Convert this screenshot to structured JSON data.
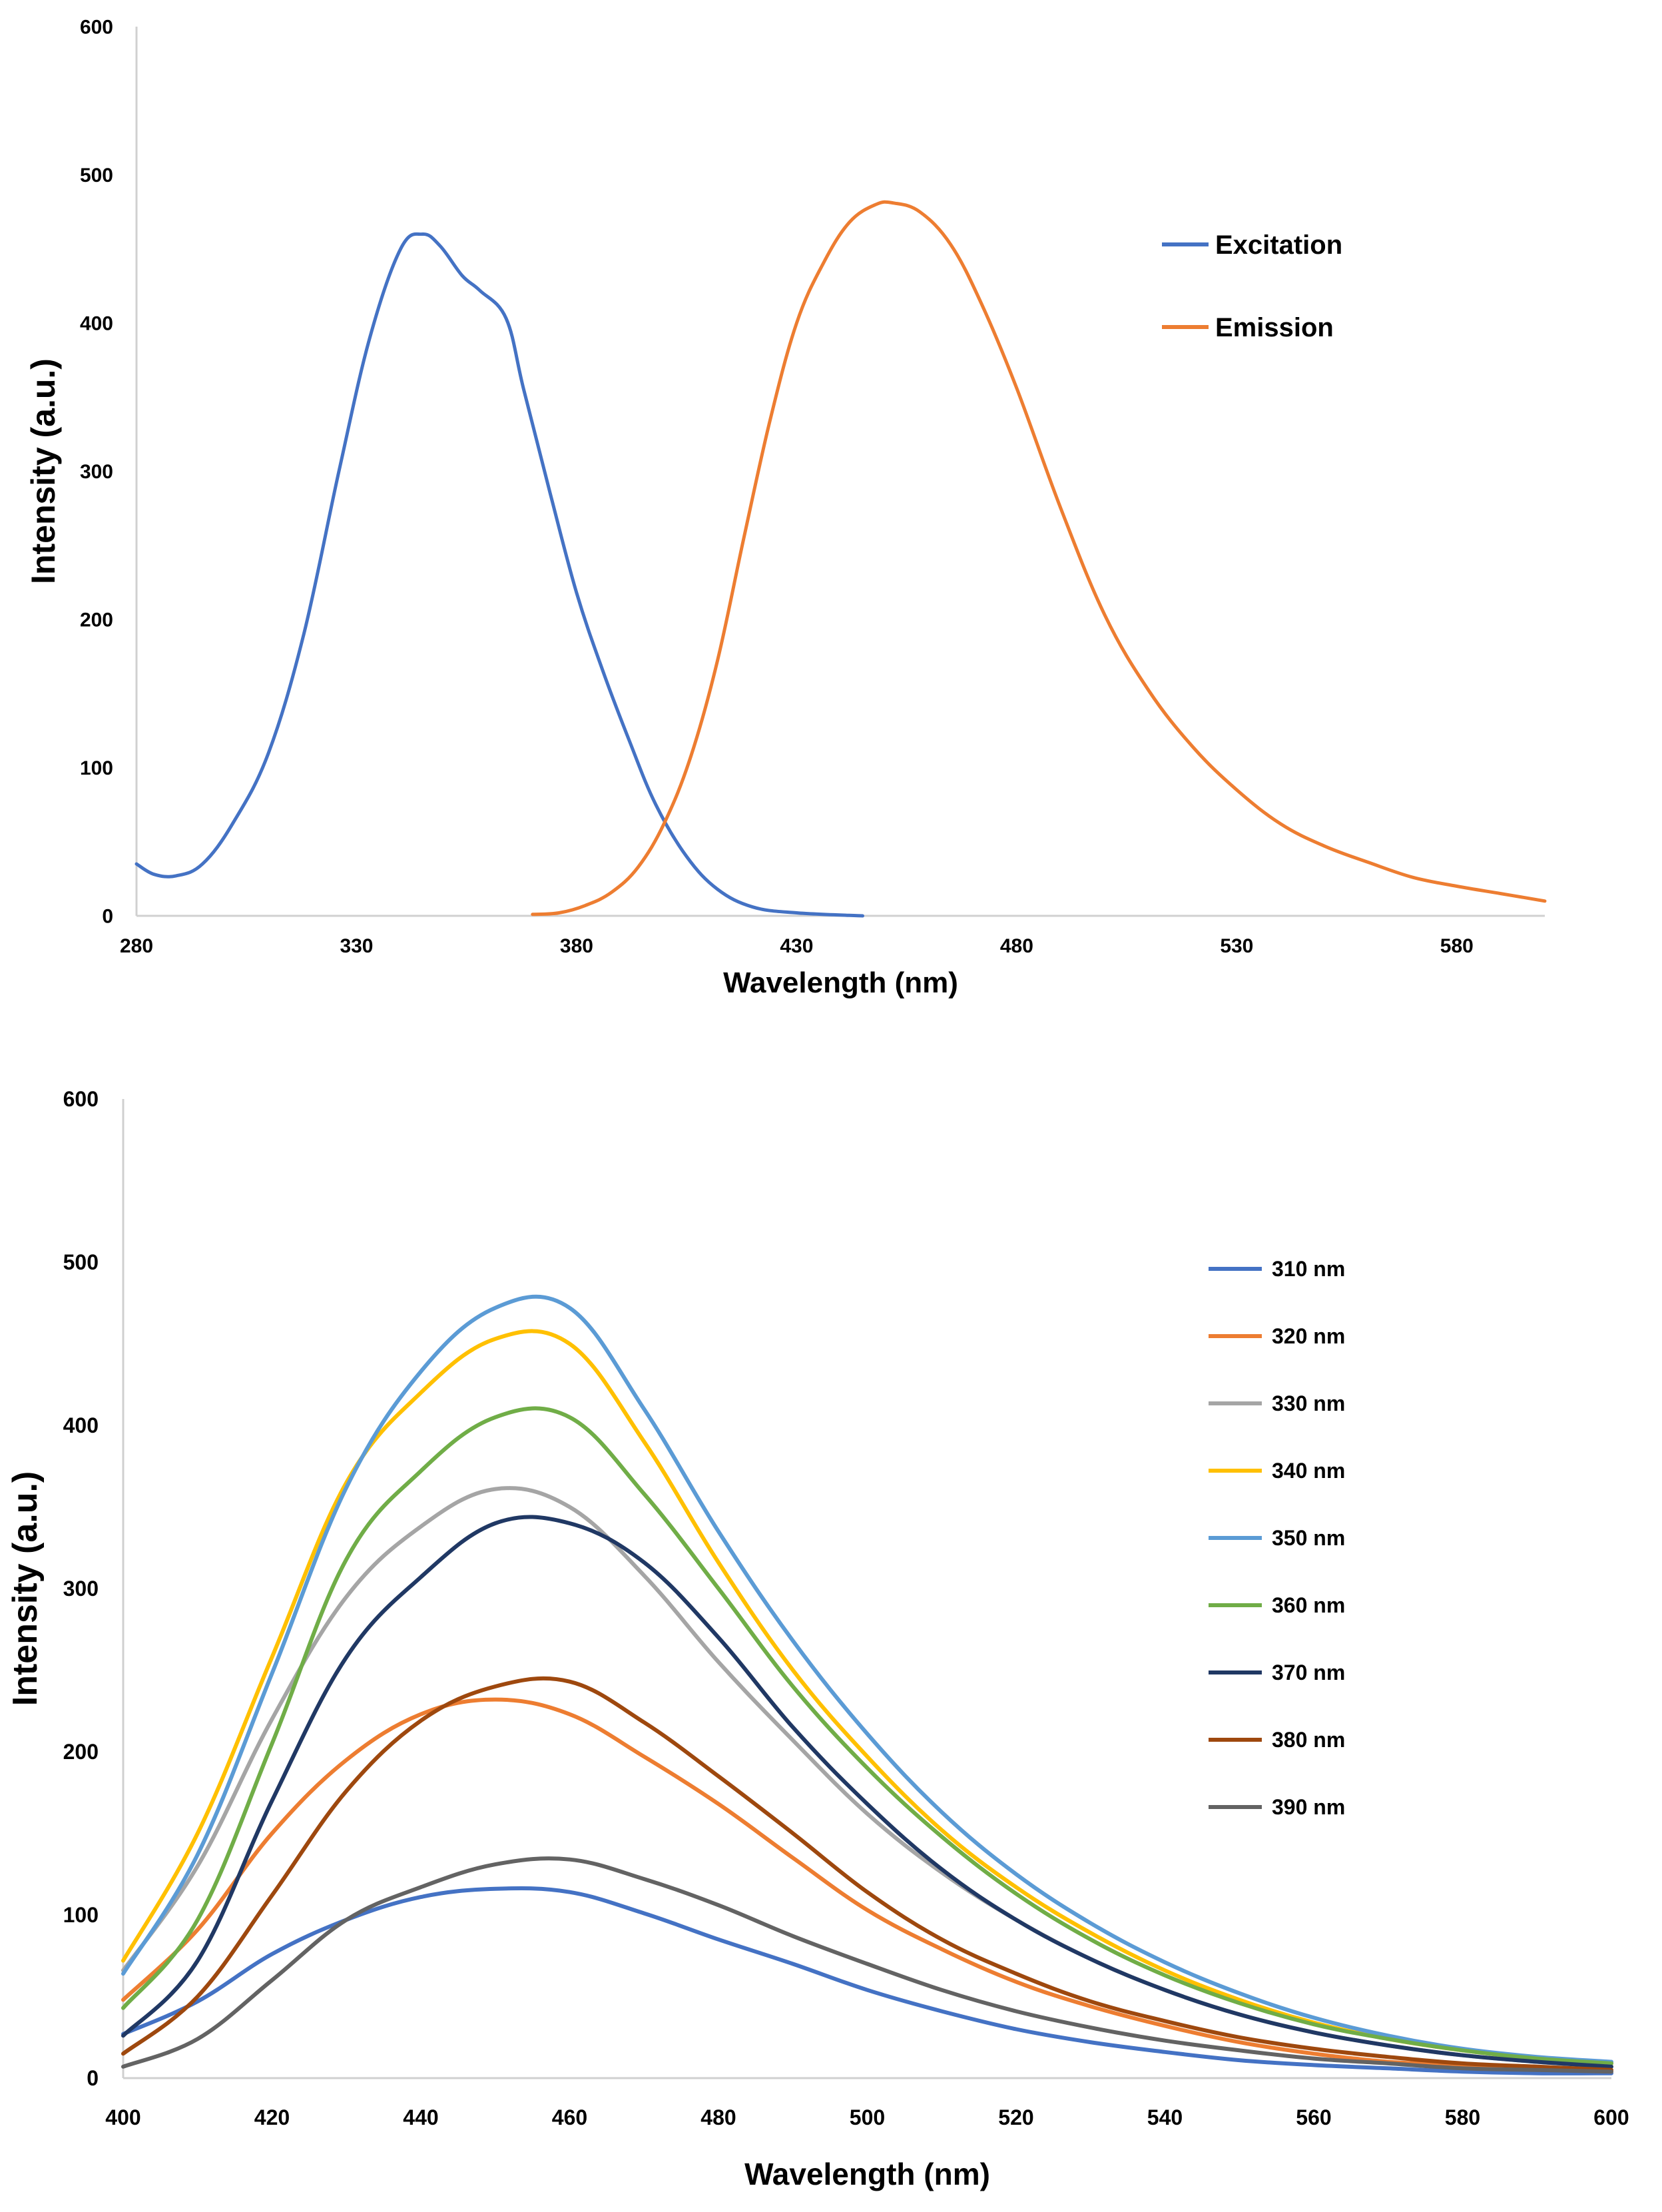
{
  "chart_data": [
    {
      "type": "line",
      "xlabel": "Wavelength (nm)",
      "ylabel": "Intensity (a.u.)",
      "xlim": [
        280,
        600
      ],
      "ylim": [
        0,
        600
      ],
      "xticks": [
        "280",
        "330",
        "380",
        "430",
        "480",
        "530",
        "580"
      ],
      "yticks": [
        "0",
        "100",
        "200",
        "300",
        "400",
        "500",
        "600"
      ],
      "grid": false,
      "legend_position": "top-right",
      "series": [
        {
          "name": "Excitation",
          "color": "#4472C4",
          "x": [
            280,
            284,
            289,
            295,
            302,
            310,
            318,
            326,
            333,
            340,
            345,
            349,
            354,
            358,
            364,
            368,
            374,
            380,
            386,
            392,
            398,
            405,
            412,
            420,
            430,
            445
          ],
          "y": [
            35,
            28,
            27,
            35,
            63,
            110,
            190,
            300,
            390,
            450,
            460,
            452,
            432,
            422,
            403,
            355,
            285,
            218,
            165,
            118,
            75,
            40,
            18,
            6,
            2,
            0
          ]
        },
        {
          "name": "Emission",
          "color": "#ED7D31",
          "x": [
            370,
            376,
            382,
            388,
            394,
            400,
            406,
            412,
            418,
            424,
            430,
            436,
            442,
            448,
            452,
            458,
            465,
            472,
            480,
            490,
            500,
            510,
            520,
            530,
            540,
            550,
            560,
            570,
            580,
            590,
            600
          ],
          "y": [
            1,
            2,
            7,
            16,
            33,
            63,
            108,
            172,
            255,
            335,
            400,
            440,
            468,
            480,
            481,
            475,
            453,
            413,
            356,
            275,
            203,
            152,
            114,
            85,
            62,
            47,
            36,
            26,
            20,
            15,
            10
          ]
        }
      ]
    },
    {
      "type": "line",
      "xlabel": "Wavelength (nm)",
      "ylabel": "Intensity (a.u.)",
      "xlim": [
        400,
        600
      ],
      "ylim": [
        0,
        600
      ],
      "xticks": [
        "400",
        "420",
        "440",
        "460",
        "480",
        "500",
        "520",
        "540",
        "560",
        "580",
        "600"
      ],
      "yticks": [
        "0",
        "100",
        "200",
        "300",
        "400",
        "500",
        "600"
      ],
      "grid": false,
      "legend_position": "right",
      "series": [
        {
          "name": "310 nm",
          "color": "#4472C4",
          "x": [
            400,
            410,
            420,
            430,
            440,
            450,
            460,
            470,
            480,
            490,
            500,
            510,
            520,
            530,
            540,
            550,
            560,
            570,
            580,
            590,
            600
          ],
          "y": [
            27,
            47,
            76,
            97,
            111,
            116,
            114,
            101,
            85,
            70,
            54,
            41,
            30,
            22,
            16,
            11,
            8,
            6,
            4,
            3,
            3
          ]
        },
        {
          "name": "320 nm",
          "color": "#ED7D31",
          "x": [
            400,
            410,
            420,
            430,
            440,
            450,
            460,
            470,
            480,
            490,
            500,
            510,
            520,
            530,
            540,
            550,
            560,
            570,
            580,
            590,
            600
          ],
          "y": [
            48,
            91,
            150,
            195,
            223,
            232,
            223,
            197,
            168,
            135,
            103,
            79,
            59,
            44,
            32,
            22,
            15,
            10,
            8,
            6,
            4
          ]
        },
        {
          "name": "330 nm",
          "color": "#A5A5A5",
          "x": [
            400,
            410,
            420,
            430,
            440,
            450,
            460,
            470,
            480,
            490,
            500,
            510,
            520,
            530,
            540,
            550,
            560,
            570,
            580,
            590,
            600
          ],
          "y": [
            66,
            130,
            220,
            295,
            338,
            361,
            350,
            308,
            255,
            207,
            162,
            126,
            97,
            73,
            54,
            39,
            28,
            20,
            14,
            10,
            7
          ]
        },
        {
          "name": "340 nm",
          "color": "#FFC000",
          "x": [
            400,
            410,
            420,
            430,
            440,
            450,
            460,
            470,
            480,
            490,
            500,
            510,
            520,
            530,
            540,
            550,
            560,
            570,
            580,
            590,
            600
          ],
          "y": [
            72,
            150,
            258,
            365,
            420,
            453,
            450,
            390,
            316,
            250,
            197,
            152,
            117,
            89,
            66,
            48,
            34,
            24,
            17,
            12,
            9
          ]
        },
        {
          "name": "350 nm",
          "color": "#5B9BD5",
          "x": [
            400,
            410,
            420,
            430,
            440,
            450,
            460,
            470,
            480,
            490,
            500,
            510,
            520,
            530,
            540,
            550,
            560,
            570,
            580,
            590,
            600
          ],
          "y": [
            64,
            137,
            248,
            362,
            433,
            472,
            472,
            410,
            335,
            268,
            211,
            163,
            125,
            95,
            71,
            52,
            37,
            26,
            18,
            13,
            10
          ]
        },
        {
          "name": "360 nm",
          "color": "#70AD47",
          "x": [
            400,
            410,
            420,
            430,
            440,
            450,
            460,
            470,
            480,
            490,
            500,
            510,
            520,
            530,
            540,
            550,
            560,
            570,
            580,
            590,
            600
          ],
          "y": [
            43,
            97,
            205,
            318,
            372,
            405,
            405,
            358,
            300,
            240,
            190,
            148,
            113,
            85,
            63,
            46,
            33,
            24,
            17,
            12,
            9
          ]
        },
        {
          "name": "370 nm",
          "color": "#203864",
          "x": [
            400,
            410,
            420,
            430,
            440,
            450,
            460,
            470,
            480,
            490,
            500,
            510,
            520,
            530,
            540,
            550,
            560,
            570,
            580,
            590,
            600
          ],
          "y": [
            26,
            72,
            170,
            258,
            307,
            340,
            340,
            316,
            270,
            215,
            168,
            128,
            97,
            73,
            54,
            39,
            28,
            20,
            14,
            10,
            7
          ]
        },
        {
          "name": "380 nm",
          "color": "#9E480E",
          "x": [
            400,
            410,
            420,
            430,
            440,
            450,
            460,
            470,
            480,
            490,
            500,
            510,
            520,
            530,
            540,
            550,
            560,
            570,
            580,
            590,
            600
          ],
          "y": [
            15,
            50,
            112,
            176,
            219,
            240,
            243,
            218,
            185,
            150,
            114,
            85,
            64,
            47,
            35,
            25,
            18,
            13,
            9,
            7,
            5
          ]
        },
        {
          "name": "390 nm",
          "color": "#636363",
          "x": [
            400,
            410,
            420,
            430,
            440,
            450,
            460,
            470,
            480,
            490,
            500,
            510,
            520,
            530,
            540,
            550,
            560,
            570,
            580,
            590,
            600
          ],
          "y": [
            7,
            24,
            60,
            97,
            117,
            131,
            134,
            122,
            106,
            87,
            70,
            54,
            41,
            31,
            23,
            17,
            12,
            9,
            6,
            5,
            4
          ]
        }
      ]
    }
  ]
}
